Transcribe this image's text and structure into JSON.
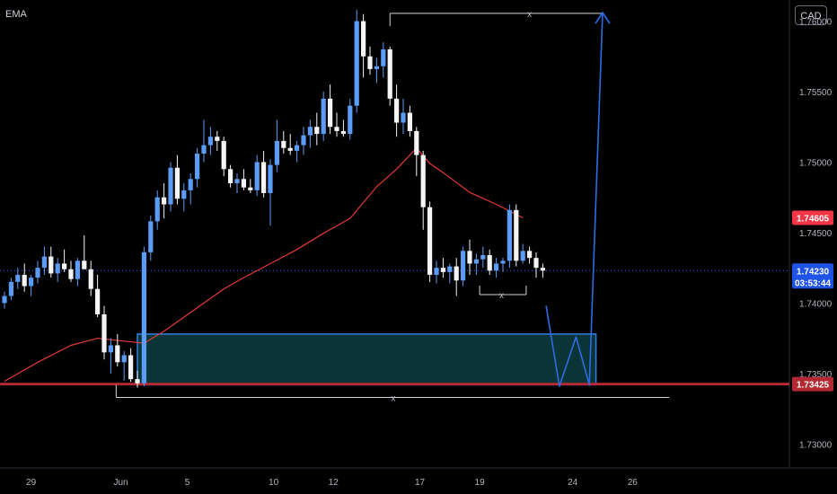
{
  "indicator_label": "EMA",
  "currency_button": "CAD",
  "chart_data": {
    "type": "candlestick",
    "y_range": [
      1.7283,
      1.7615
    ],
    "y_ticks": [
      "1.76000",
      "1.75500",
      "1.75000",
      "1.74500",
      "1.74000",
      "1.73500",
      "1.73000"
    ],
    "x_labels": [
      {
        "text": "29",
        "index": 4
      },
      {
        "text": "Jun",
        "index": 17.5
      },
      {
        "text": "5",
        "index": 27.5
      },
      {
        "text": "10",
        "index": 40.5
      },
      {
        "text": "12",
        "index": 49.5
      },
      {
        "text": "17",
        "index": 62.5
      },
      {
        "text": "19",
        "index": 71.5
      },
      {
        "text": "24",
        "index": 85.5
      },
      {
        "text": "26",
        "index": 94.5
      }
    ],
    "last_price": {
      "value": 1.7423,
      "label": "1.74230",
      "countdown": "03:53:44",
      "color": "#1e53e5"
    },
    "ema_value": {
      "value": 1.74605,
      "label": "1.74605",
      "color": "#f23645"
    },
    "support_level": {
      "value": 1.73425,
      "label": "1.73425",
      "color": "#b22833"
    },
    "demand_zone": {
      "top": 1.7378,
      "bottom": 1.7342,
      "start_index": 20,
      "end_index": 89
    },
    "annotations": [
      "x",
      "x",
      "x"
    ],
    "projection_path": [
      [
        81.5,
        1.7398
      ],
      [
        83.5,
        1.7341
      ],
      [
        86,
        1.7376
      ],
      [
        88,
        1.7342
      ],
      [
        90,
        1.7606
      ]
    ],
    "candles": [
      [
        1.74,
        1.7408,
        1.7396,
        1.7405
      ],
      [
        1.7405,
        1.7418,
        1.7402,
        1.7415
      ],
      [
        1.7415,
        1.7425,
        1.741,
        1.742
      ],
      [
        1.742,
        1.7428,
        1.7408,
        1.7412
      ],
      [
        1.7412,
        1.742,
        1.7405,
        1.7418
      ],
      [
        1.7418,
        1.743,
        1.7414,
        1.7425
      ],
      [
        1.7425,
        1.744,
        1.742,
        1.7433
      ],
      [
        1.7433,
        1.744,
        1.7418,
        1.7421
      ],
      [
        1.7421,
        1.7432,
        1.7415,
        1.7428
      ],
      [
        1.7428,
        1.7438,
        1.7422,
        1.7424
      ],
      [
        1.7424,
        1.743,
        1.7415,
        1.7417
      ],
      [
        1.7417,
        1.7432,
        1.7412,
        1.743
      ],
      [
        1.743,
        1.7448,
        1.7425,
        1.7424
      ],
      [
        1.7424,
        1.743,
        1.7405,
        1.741
      ],
      [
        1.741,
        1.742,
        1.739,
        1.7392
      ],
      [
        1.7392,
        1.7398,
        1.736,
        1.7365
      ],
      [
        1.7365,
        1.7375,
        1.735,
        1.737
      ],
      [
        1.737,
        1.7378,
        1.7355,
        1.7358
      ],
      [
        1.7358,
        1.7366,
        1.7345,
        1.7363
      ],
      [
        1.7363,
        1.7368,
        1.7344,
        1.7346
      ],
      [
        1.7346,
        1.7352,
        1.734,
        1.7343
      ],
      [
        1.7343,
        1.744,
        1.7341,
        1.7436
      ],
      [
        1.7436,
        1.7462,
        1.743,
        1.7458
      ],
      [
        1.7458,
        1.748,
        1.7452,
        1.7475
      ],
      [
        1.7475,
        1.7485,
        1.746,
        1.747
      ],
      [
        1.747,
        1.75,
        1.7465,
        1.7496
      ],
      [
        1.7496,
        1.7505,
        1.747,
        1.7474
      ],
      [
        1.7474,
        1.7485,
        1.7465,
        1.748
      ],
      [
        1.748,
        1.7492,
        1.747,
        1.7488
      ],
      [
        1.7488,
        1.751,
        1.7482,
        1.7506
      ],
      [
        1.7506,
        1.753,
        1.75,
        1.7512
      ],
      [
        1.7512,
        1.7525,
        1.7505,
        1.7518
      ],
      [
        1.7518,
        1.7522,
        1.7508,
        1.7515
      ],
      [
        1.7515,
        1.7518,
        1.749,
        1.7495
      ],
      [
        1.7495,
        1.7498,
        1.7482,
        1.7485
      ],
      [
        1.7485,
        1.7492,
        1.7478,
        1.7488
      ],
      [
        1.7488,
        1.7495,
        1.748,
        1.7482
      ],
      [
        1.7482,
        1.7488,
        1.7478,
        1.748
      ],
      [
        1.748,
        1.7505,
        1.7476,
        1.75
      ],
      [
        1.75,
        1.7508,
        1.7475,
        1.7478
      ],
      [
        1.7478,
        1.7502,
        1.7455,
        1.7498
      ],
      [
        1.7498,
        1.753,
        1.7493,
        1.7515
      ],
      [
        1.7515,
        1.7522,
        1.7506,
        1.751
      ],
      [
        1.751,
        1.752,
        1.7505,
        1.7508
      ],
      [
        1.7508,
        1.7515,
        1.75,
        1.7512
      ],
      [
        1.7512,
        1.7525,
        1.7505,
        1.7519
      ],
      [
        1.7519,
        1.753,
        1.751,
        1.7525
      ],
      [
        1.7525,
        1.7535,
        1.7512,
        1.752
      ],
      [
        1.752,
        1.755,
        1.7515,
        1.7545
      ],
      [
        1.7545,
        1.7555,
        1.752,
        1.7525
      ],
      [
        1.7525,
        1.7535,
        1.7518,
        1.7522
      ],
      [
        1.7522,
        1.753,
        1.7518,
        1.752
      ],
      [
        1.752,
        1.7545,
        1.7516,
        1.754
      ],
      [
        1.754,
        1.7608,
        1.7535,
        1.76
      ],
      [
        1.76,
        1.7605,
        1.756,
        1.7575
      ],
      [
        1.7575,
        1.7582,
        1.7562,
        1.7566
      ],
      [
        1.7566,
        1.7574,
        1.7556,
        1.7568
      ],
      [
        1.7568,
        1.7585,
        1.756,
        1.758
      ],
      [
        1.758,
        1.7582,
        1.754,
        1.7545
      ],
      [
        1.7545,
        1.7555,
        1.7518,
        1.7528
      ],
      [
        1.7528,
        1.7545,
        1.752,
        1.7535
      ],
      [
        1.7535,
        1.754,
        1.7518,
        1.7522
      ],
      [
        1.7522,
        1.7525,
        1.749,
        1.7505
      ],
      [
        1.7505,
        1.7508,
        1.7452,
        1.7468
      ],
      [
        1.7468,
        1.7472,
        1.7415,
        1.742
      ],
      [
        1.742,
        1.743,
        1.7414,
        1.7425
      ],
      [
        1.7425,
        1.7432,
        1.7418,
        1.7422
      ],
      [
        1.7422,
        1.7428,
        1.7414,
        1.7426
      ],
      [
        1.7426,
        1.7432,
        1.7405,
        1.7416
      ],
      [
        1.7416,
        1.744,
        1.7412,
        1.7437
      ],
      [
        1.7437,
        1.7445,
        1.742,
        1.7428
      ],
      [
        1.7428,
        1.7435,
        1.742,
        1.7431
      ],
      [
        1.7431,
        1.744,
        1.7425,
        1.7434
      ],
      [
        1.7434,
        1.7438,
        1.742,
        1.7423
      ],
      [
        1.7423,
        1.7432,
        1.7418,
        1.7428
      ],
      [
        1.7428,
        1.7432,
        1.7422,
        1.743
      ],
      [
        1.743,
        1.747,
        1.7425,
        1.7466
      ],
      [
        1.7466,
        1.747,
        1.7426,
        1.743
      ],
      [
        1.743,
        1.7442,
        1.7428,
        1.7437
      ],
      [
        1.7437,
        1.744,
        1.7428,
        1.7432
      ],
      [
        1.7432,
        1.7436,
        1.7418,
        1.7425
      ],
      [
        1.7425,
        1.7428,
        1.7418,
        1.7423
      ]
    ],
    "ema": [
      [
        0,
        1.73445
      ],
      [
        5,
        1.7358
      ],
      [
        10,
        1.737
      ],
      [
        14,
        1.7375
      ],
      [
        18,
        1.7373
      ],
      [
        21,
        1.73715
      ],
      [
        24,
        1.738
      ],
      [
        27,
        1.739
      ],
      [
        30,
        1.74
      ],
      [
        33,
        1.741
      ],
      [
        36,
        1.7418
      ],
      [
        40,
        1.7428
      ],
      [
        44,
        1.7438
      ],
      [
        48,
        1.74495
      ],
      [
        52,
        1.746
      ],
      [
        56,
        1.74825
      ],
      [
        59,
        1.7495
      ],
      [
        62,
        1.751
      ],
      [
        64,
        1.7499
      ],
      [
        66,
        1.74925
      ],
      [
        70,
        1.74785
      ],
      [
        74,
        1.747
      ],
      [
        78,
        1.74605
      ]
    ]
  }
}
